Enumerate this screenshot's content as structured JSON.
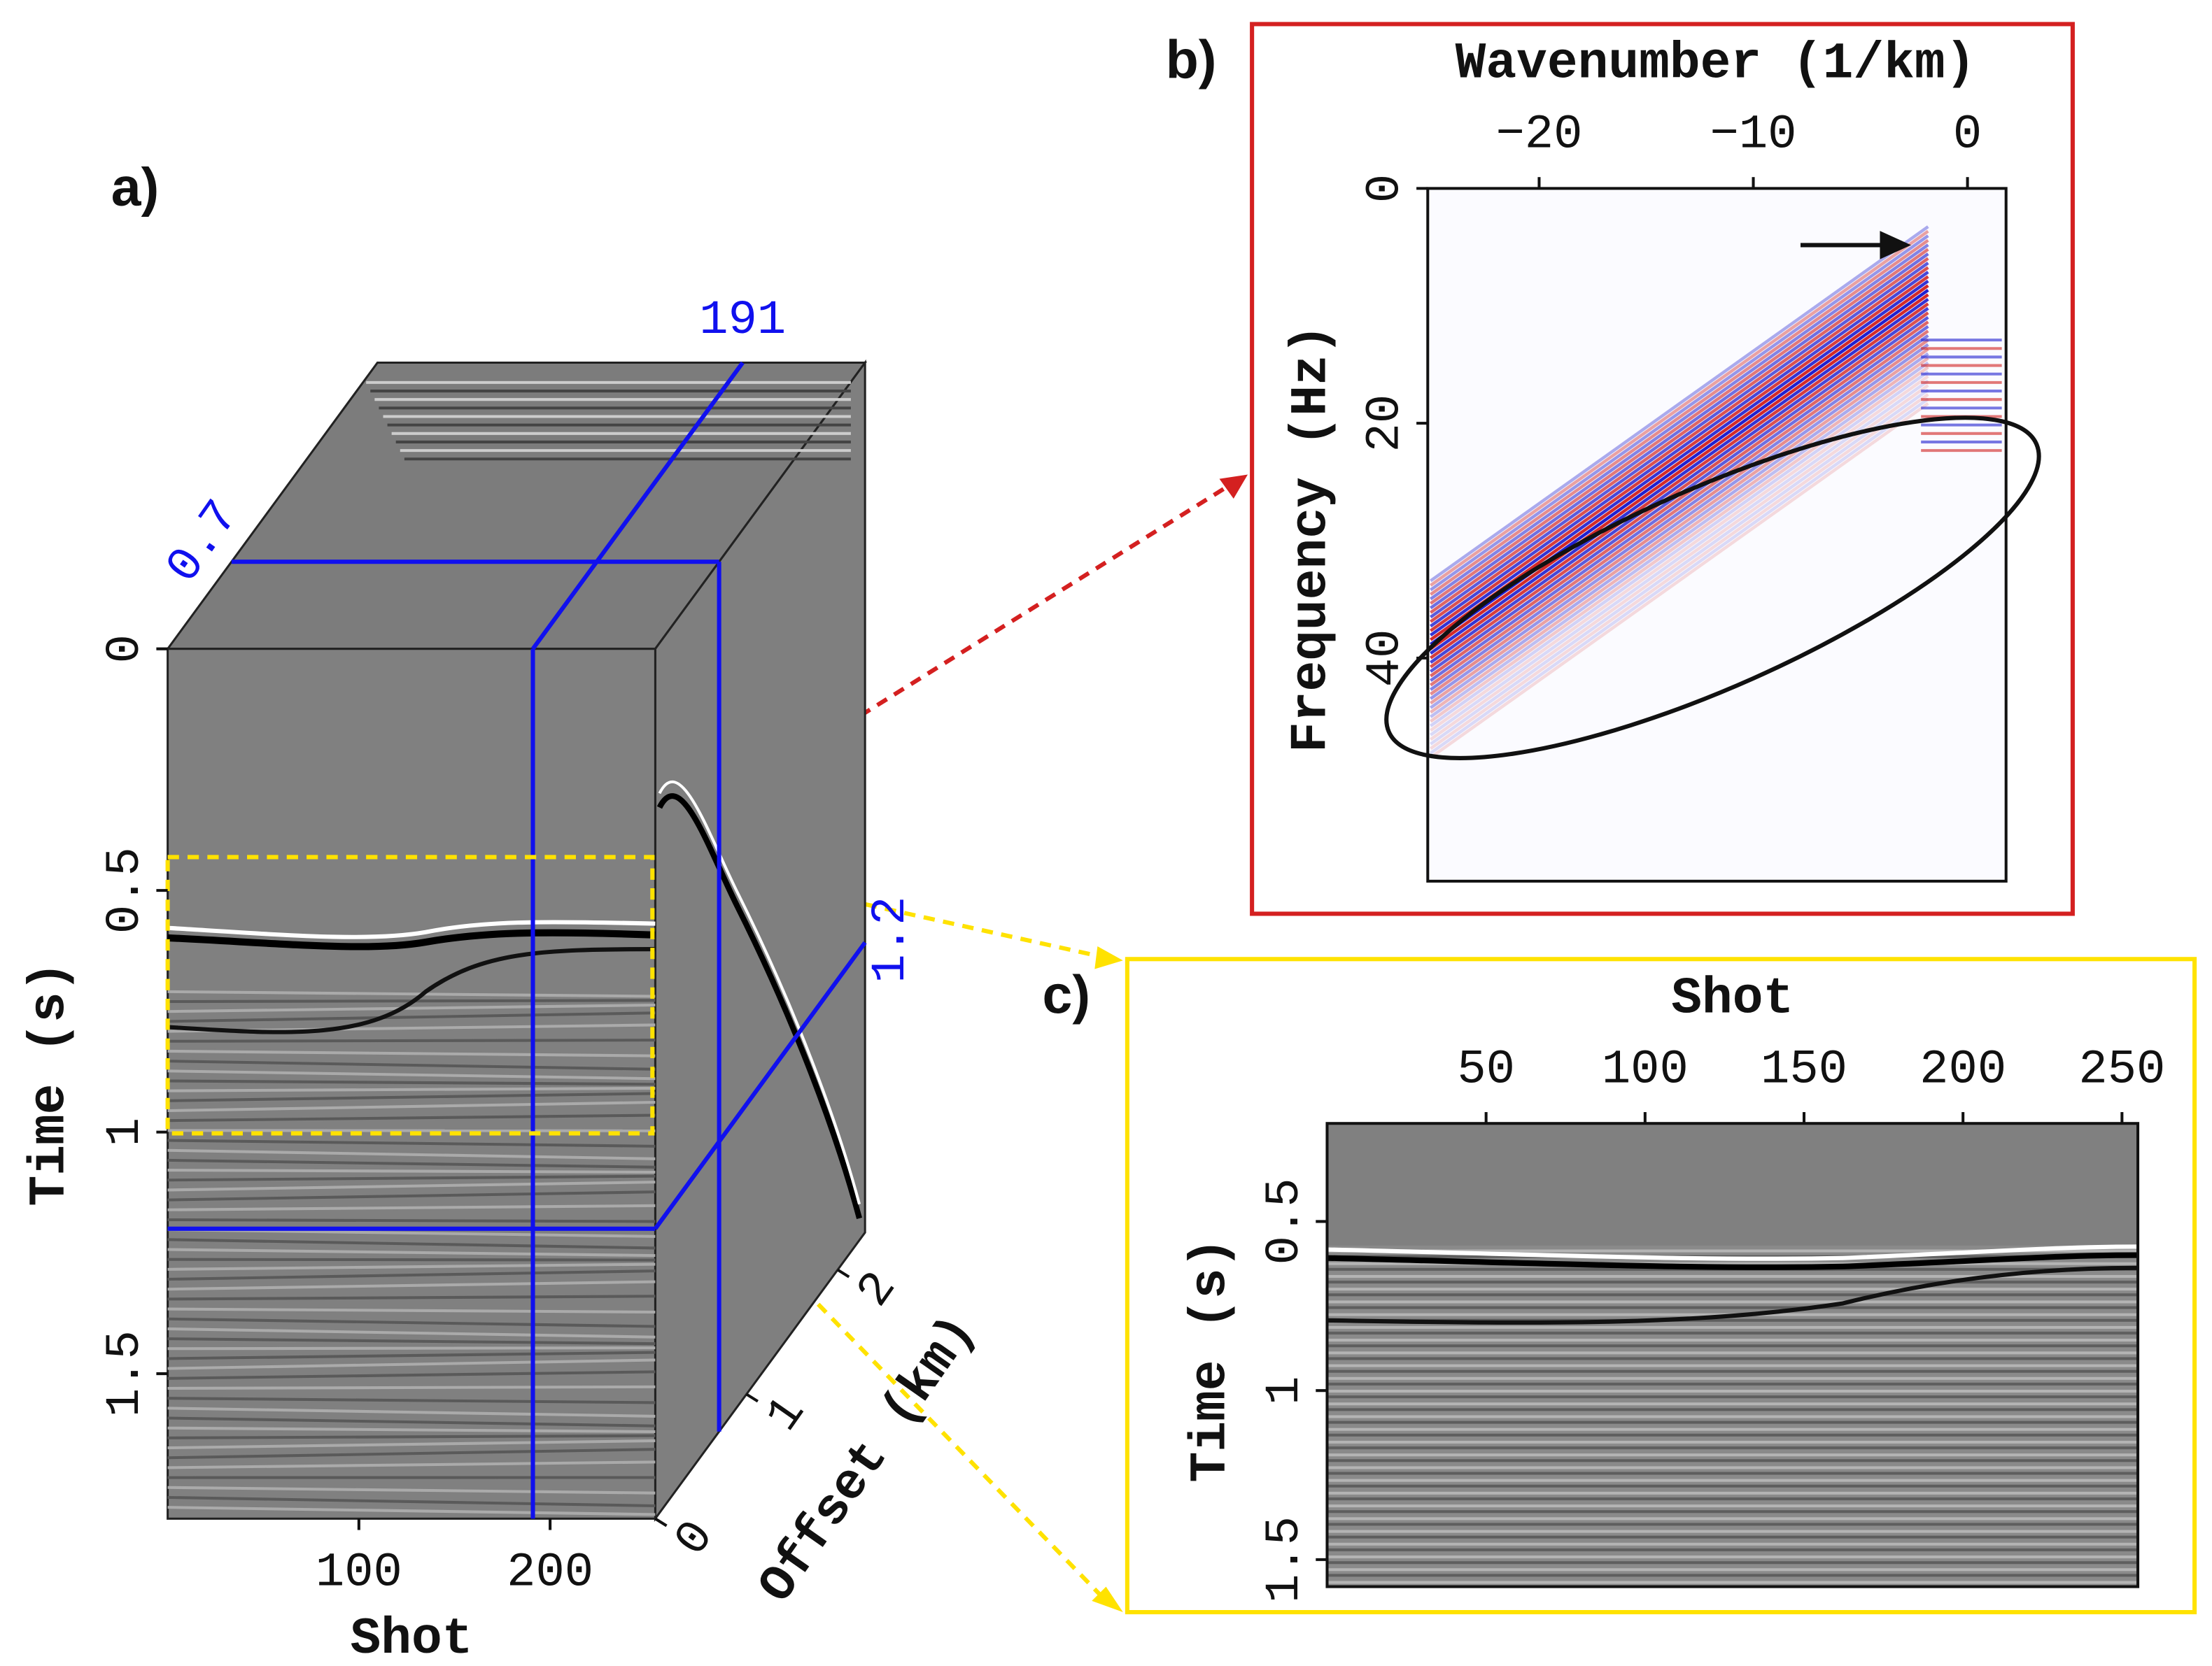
{
  "chart_data": [
    {
      "type": "cube",
      "label": "a)",
      "xlabel": "Shot",
      "ylabel": "Time (s)",
      "zlabel": "Offset (km)",
      "xlim": [
        0,
        255
      ],
      "xticks": [
        100,
        200
      ],
      "ylim": [
        0,
        1.8
      ],
      "yticks": [
        0,
        0.5,
        1,
        1.5
      ],
      "zlim": [
        0,
        2.3
      ],
      "zticks": [
        0,
        1,
        2
      ],
      "slices": {
        "x": 191,
        "y": 1.2,
        "z": 0.7
      }
    },
    {
      "type": "image",
      "label": "b)",
      "xlabel": "Wavenumber (1/km)",
      "ylabel": "Frequency (Hz)",
      "xlim": [
        -25.2,
        1.8
      ],
      "xticks": [
        {
          "value": -20,
          "label": "−20"
        },
        {
          "value": -10,
          "label": "−10"
        },
        0
      ],
      "ylim": [
        0,
        59
      ],
      "yticks": [
        0,
        20,
        40
      ]
    },
    {
      "type": "image",
      "label": "c)",
      "xlabel": "Shot",
      "ylabel": "Time (s)",
      "xlim": [
        0,
        255
      ],
      "xticks": [
        50,
        100,
        150,
        200,
        250
      ],
      "ylim": [
        0.21,
        1.58
      ],
      "yticks": [
        0.5,
        1,
        1.5
      ]
    }
  ]
}
